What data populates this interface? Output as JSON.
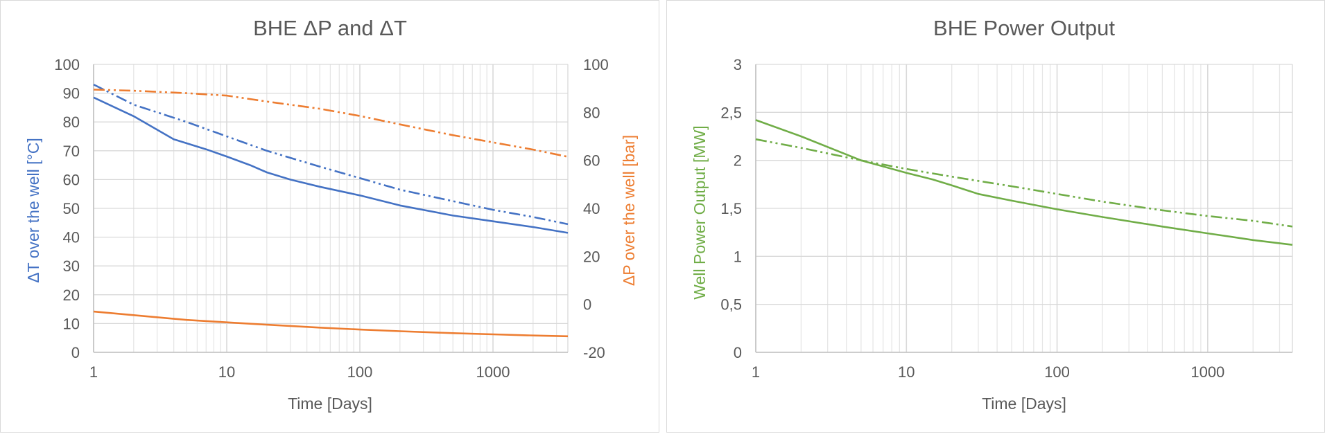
{
  "colors": {
    "blue": "#4472c4",
    "orange": "#ed7d31",
    "green": "#70ad47",
    "grid": "#d9d9d9",
    "text": "#595959"
  },
  "chart_data": [
    {
      "type": "line",
      "title": "BHE ΔP and ΔT",
      "xlabel": "Time [Days]",
      "ylabel": "ΔT over the well [°C]",
      "y2label": "ΔP over the well [bar]",
      "xscale": "log",
      "xlim": [
        1,
        3650
      ],
      "ylim": [
        0,
        100
      ],
      "y2lim": [
        -20,
        100
      ],
      "xticks": [
        "1",
        "10",
        "100",
        "1000"
      ],
      "yticks": [
        "0",
        "10",
        "20",
        "30",
        "40",
        "50",
        "60",
        "70",
        "80",
        "90",
        "100"
      ],
      "y2ticks": [
        "-20",
        "0",
        "20",
        "40",
        "60",
        "80",
        "100"
      ],
      "grid": true,
      "legend": "none",
      "series": [
        {
          "axis": "left",
          "color": "#4472c4",
          "dash": "solid",
          "points": [
            [
              1,
              88.5
            ],
            [
              2,
              82
            ],
            [
              4,
              74
            ],
            [
              7,
              70.5
            ],
            [
              10,
              68
            ],
            [
              15,
              65
            ],
            [
              20,
              62.5
            ],
            [
              30,
              60
            ],
            [
              50,
              57.5
            ],
            [
              100,
              54.5
            ],
            [
              200,
              51
            ],
            [
              500,
              47.5
            ],
            [
              1000,
              45.5
            ],
            [
              2000,
              43.5
            ],
            [
              3650,
              41.5
            ]
          ]
        },
        {
          "axis": "left",
          "color": "#4472c4",
          "dash": "dashdotdot",
          "points": [
            [
              1,
              93
            ],
            [
              2,
              86
            ],
            [
              5,
              80
            ],
            [
              10,
              75
            ],
            [
              20,
              70
            ],
            [
              50,
              64.5
            ],
            [
              100,
              60.5
            ],
            [
              200,
              56.5
            ],
            [
              500,
              52.5
            ],
            [
              1000,
              49.5
            ],
            [
              2000,
              47
            ],
            [
              3650,
              44.5
            ]
          ]
        },
        {
          "axis": "right",
          "color": "#ed7d31",
          "dash": "solid",
          "points": [
            [
              1,
              -3
            ],
            [
              2,
              -4.5
            ],
            [
              5,
              -6.5
            ],
            [
              10,
              -7.5
            ],
            [
              20,
              -8.5
            ],
            [
              50,
              -9.7
            ],
            [
              100,
              -10.5
            ],
            [
              200,
              -11.2
            ],
            [
              500,
              -12
            ],
            [
              1000,
              -12.5
            ],
            [
              2000,
              -13
            ],
            [
              3650,
              -13.3
            ]
          ]
        },
        {
          "axis": "right",
          "color": "#ed7d31",
          "dash": "dashdotdot",
          "points": [
            [
              1,
              89.5
            ],
            [
              2,
              89
            ],
            [
              5,
              88
            ],
            [
              10,
              87
            ],
            [
              20,
              84.5
            ],
            [
              50,
              81.5
            ],
            [
              100,
              78.5
            ],
            [
              200,
              75
            ],
            [
              500,
              70.5
            ],
            [
              1000,
              67.5
            ],
            [
              2000,
              64.5
            ],
            [
              3650,
              61.5
            ]
          ]
        }
      ]
    },
    {
      "type": "line",
      "title": "BHE Power Output",
      "xlabel": "Time [Days]",
      "ylabel": "Well Power Output [MW]",
      "xscale": "log",
      "xlim": [
        1,
        3650
      ],
      "ylim": [
        0,
        3
      ],
      "xticks": [
        "1",
        "10",
        "100",
        "1000"
      ],
      "yticks": [
        "0",
        "0,5",
        "1",
        "1,5",
        "2",
        "2,5",
        "3"
      ],
      "grid": true,
      "legend": "none",
      "series": [
        {
          "axis": "left",
          "color": "#70ad47",
          "dash": "solid",
          "points": [
            [
              1,
              2.42
            ],
            [
              2,
              2.25
            ],
            [
              5,
              2.0
            ],
            [
              10,
              1.87
            ],
            [
              15,
              1.8
            ],
            [
              20,
              1.74
            ],
            [
              30,
              1.65
            ],
            [
              50,
              1.58
            ],
            [
              100,
              1.49
            ],
            [
              200,
              1.41
            ],
            [
              500,
              1.31
            ],
            [
              1000,
              1.24
            ],
            [
              2000,
              1.17
            ],
            [
              3650,
              1.12
            ]
          ]
        },
        {
          "axis": "left",
          "color": "#70ad47",
          "dash": "dashdotdot",
          "points": [
            [
              1,
              2.22
            ],
            [
              2,
              2.13
            ],
            [
              5,
              2.0
            ],
            [
              10,
              1.91
            ],
            [
              20,
              1.83
            ],
            [
              50,
              1.73
            ],
            [
              100,
              1.65
            ],
            [
              200,
              1.57
            ],
            [
              500,
              1.48
            ],
            [
              1000,
              1.42
            ],
            [
              2000,
              1.37
            ],
            [
              3650,
              1.31
            ]
          ]
        }
      ]
    }
  ]
}
